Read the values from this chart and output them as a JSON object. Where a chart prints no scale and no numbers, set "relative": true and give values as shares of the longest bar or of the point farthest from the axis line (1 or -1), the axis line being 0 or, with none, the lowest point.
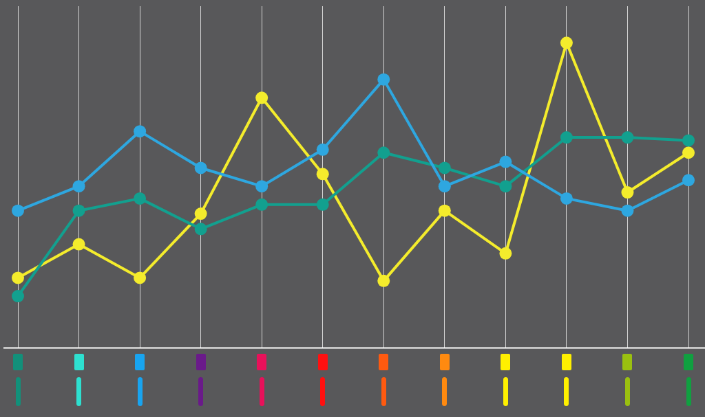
{
  "chart_data": {
    "type": "line",
    "relative": true,
    "grid": "x",
    "marker": "circle",
    "line_style": "solid",
    "legend": false,
    "categories": [
      null,
      null,
      null,
      null,
      null,
      null,
      null,
      null,
      null,
      null,
      null,
      null
    ],
    "series": [
      {
        "color": "#2ea7e0",
        "values": [
          0.45,
          0.53,
          0.71,
          0.59,
          0.53,
          0.65,
          0.88,
          0.53,
          0.61,
          0.49,
          0.45,
          0.55
        ]
      },
      {
        "color": "#12a08f",
        "values": [
          0.17,
          0.45,
          0.49,
          0.39,
          0.47,
          0.47,
          0.64,
          0.59,
          0.53,
          0.69,
          0.69,
          0.68
        ]
      },
      {
        "color": "#f4ec2c",
        "values": [
          0.23,
          0.34,
          0.23,
          0.44,
          0.82,
          0.57,
          0.22,
          0.45,
          0.31,
          1,
          0.51,
          0.64
        ]
      }
    ]
  }
}
